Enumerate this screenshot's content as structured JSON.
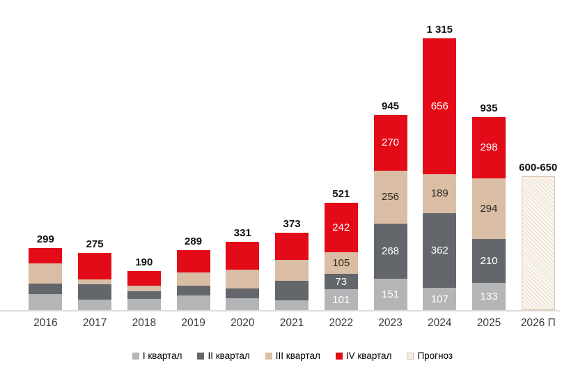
{
  "chart_data": {
    "type": "bar",
    "stacked": true,
    "grid": false,
    "legend_position": "bottom",
    "axis": {
      "baseline_color": "#dcdcdc"
    },
    "categories": [
      "2016",
      "2017",
      "2018",
      "2019",
      "2020",
      "2021",
      "2022",
      "2023",
      "2024",
      "2025",
      "2026 П"
    ],
    "totals": [
      "299",
      "275",
      "190",
      "289",
      "331",
      "373",
      "521",
      "945",
      "1 315",
      "935",
      "600-650"
    ],
    "total_values": [
      299,
      275,
      190,
      289,
      331,
      373,
      521,
      945,
      1315,
      935,
      "600-650"
    ],
    "series": [
      {
        "name": "I квартал",
        "color": "#b3b5b7",
        "text_color": "#ffffff",
        "values": [
          76,
          52,
          53,
          72,
          58,
          48,
          101,
          151,
          107,
          133,
          null
        ],
        "labels": [
          null,
          null,
          null,
          null,
          null,
          null,
          "101",
          "151",
          "107",
          "133",
          null
        ]
      },
      {
        "name": "II квартал",
        "color": "#63666b",
        "text_color": "#ffffff",
        "values": [
          52,
          74,
          37,
          47,
          45,
          95,
          73,
          268,
          362,
          210,
          null
        ],
        "labels": [
          null,
          null,
          null,
          null,
          null,
          null,
          "73",
          "268",
          "362",
          "210",
          null
        ]
      },
      {
        "name": "III квартал",
        "color": "#d9bda4",
        "text_color": "#33291e",
        "values": [
          97,
          24,
          28,
          64,
          94,
          100,
          105,
          256,
          189,
          294,
          null
        ],
        "labels": [
          null,
          null,
          null,
          null,
          null,
          null,
          "105",
          "256",
          "189",
          "294",
          null
        ]
      },
      {
        "name": "IV квартал",
        "color": "#e30b17",
        "text_color": "#ffffff",
        "values": [
          74,
          125,
          72,
          106,
          134,
          130,
          242,
          270,
          656,
          298,
          null
        ],
        "labels": [
          null,
          null,
          null,
          null,
          null,
          null,
          "242",
          "270",
          "656",
          "298",
          null
        ]
      },
      {
        "name": "Прогноз",
        "color": "#fbf7f1",
        "hatch": true,
        "border_color": "#d8c2ab",
        "text_color": "#33291e",
        "values": [
          null,
          null,
          null,
          null,
          null,
          null,
          null,
          null,
          null,
          null,
          648
        ],
        "labels": [
          null,
          null,
          null,
          null,
          null,
          null,
          null,
          null,
          null,
          null,
          null
        ]
      }
    ]
  }
}
